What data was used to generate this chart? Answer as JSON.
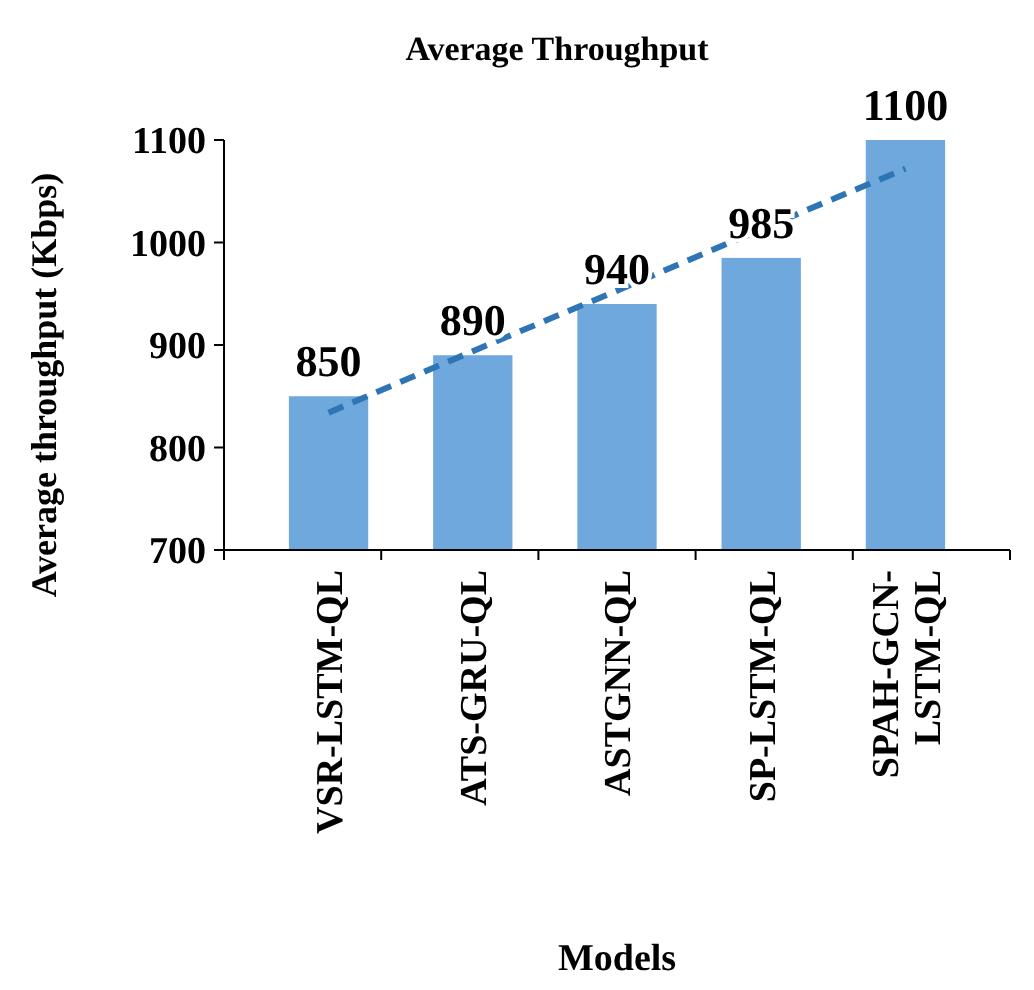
{
  "chart_data": {
    "type": "bar",
    "title": "Average Throughput",
    "xlabel": "Models",
    "ylabel": "Average throughput  (Kbps)",
    "categories": [
      "VSR-LSTM-QL",
      "ATS-GRU-QL",
      "ASTGNN-QL",
      "SP-LSTM-QL",
      "SPAH-GCN-LSTM-QL"
    ],
    "series": [
      {
        "color": "#6fa8dc",
        "values": [
          850,
          890,
          940,
          985,
          1100
        ],
        "value_labels": [
          "850",
          "890",
          "940",
          "985",
          "1100"
        ]
      },
      {
        "type": "line",
        "color": "#2e75b6",
        "line_style": "dashed",
        "values": [
          834,
          894,
          953,
          1013,
          1072
        ]
      }
    ],
    "ylim": [
      700,
      1100
    ],
    "yticks": [
      700,
      800,
      900,
      1000,
      1100
    ],
    "grid": false
  }
}
